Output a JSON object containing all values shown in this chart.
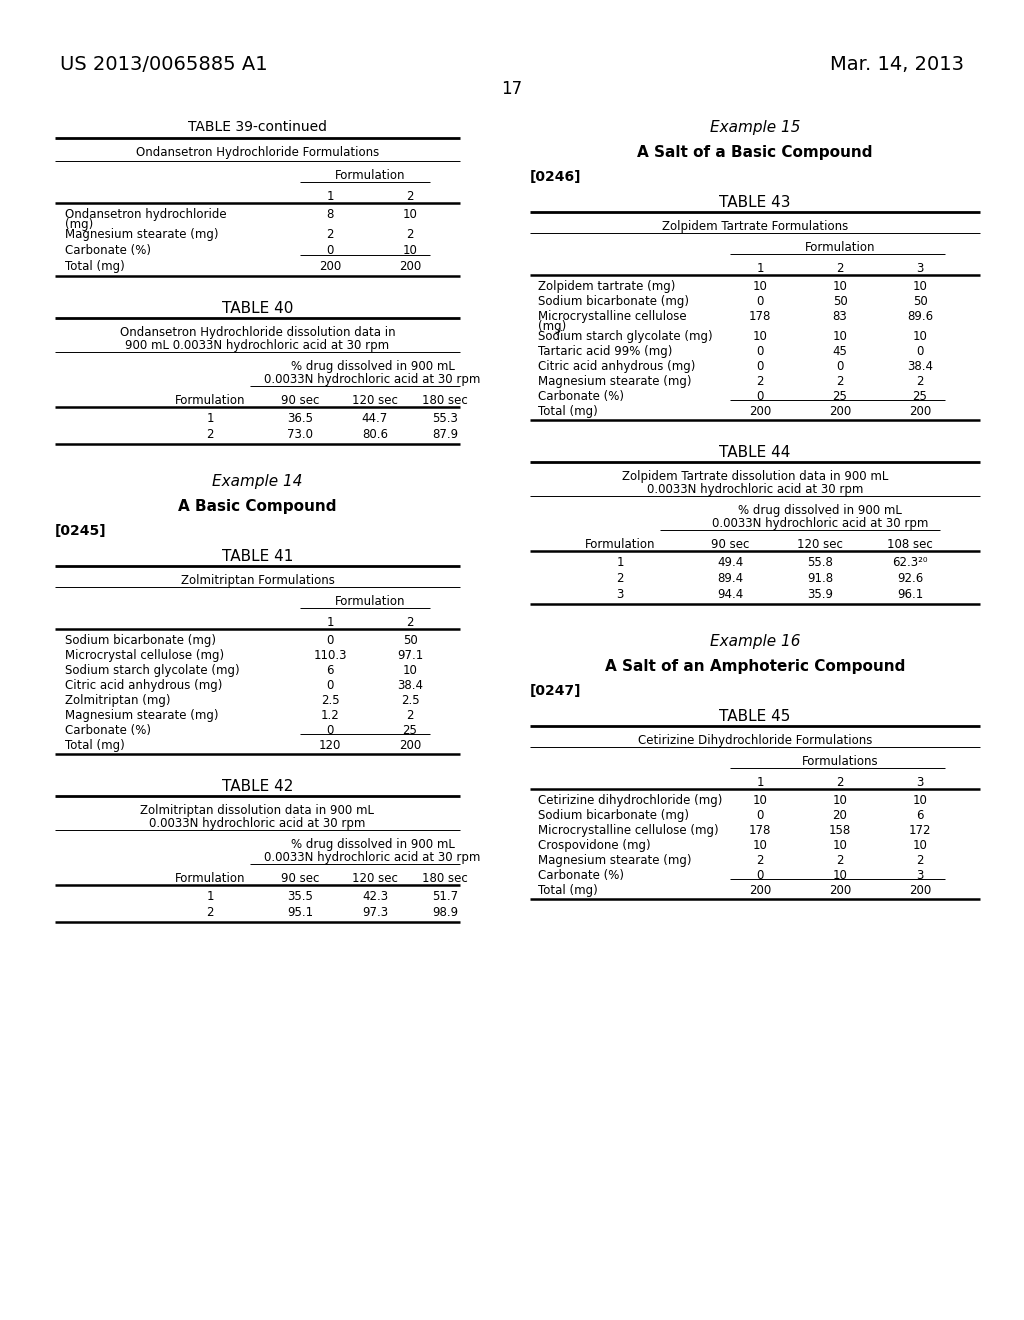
{
  "page_number": "17",
  "header_left": "US 2013/0065885 A1",
  "header_right": "Mar. 14, 2013",
  "background_color": "#ffffff",
  "text_color": "#000000",
  "table39_title": "TABLE 39-continued",
  "table39_subtitle": "Ondansetron Hydrochloride Formulations",
  "table39_formulation_header": "Formulation",
  "table39_col_headers": [
    "1",
    "2"
  ],
  "table39_rows": [
    [
      "Ondansetron hydrochloride\n(mg)",
      "8",
      "10"
    ],
    [
      "Magnesium stearate (mg)",
      "2",
      "2"
    ],
    [
      "Carbonate (%)",
      "0",
      "10"
    ],
    [
      "Total (mg)",
      "200",
      "200"
    ]
  ],
  "table40_title": "TABLE 40",
  "table40_subtitle1": "Ondansetron Hydrochloride dissolution data in",
  "table40_subtitle2": "900 mL 0.0033N hydrochloric acid at 30 rpm",
  "table40_subheader1": "% drug dissolved in 900 mL",
  "table40_subheader2": "0.0033N hydrochloric acid at 30 rpm",
  "table40_col_headers": [
    "Formulation",
    "90 sec",
    "120 sec",
    "180 sec"
  ],
  "table40_rows": [
    [
      "1",
      "36.5",
      "44.7",
      "55.3"
    ],
    [
      "2",
      "73.0",
      "80.6",
      "87.9"
    ]
  ],
  "example14_title": "Example 14",
  "example14_subtitle": "A Basic Compound",
  "example14_paragraph": "[0245]",
  "table41_title": "TABLE 41",
  "table41_subtitle": "Zolmitriptan Formulations",
  "table41_formulation_header": "Formulation",
  "table41_col_headers": [
    "1",
    "2"
  ],
  "table41_rows": [
    [
      "Sodium bicarbonate (mg)",
      "0",
      "50"
    ],
    [
      "Microcrystal cellulose (mg)",
      "110.3",
      "97.1"
    ],
    [
      "Sodium starch glycolate (mg)",
      "6",
      "10"
    ],
    [
      "Citric acid anhydrous (mg)",
      "0",
      "38.4"
    ],
    [
      "Zolmitriptan (mg)",
      "2.5",
      "2.5"
    ],
    [
      "Magnesium stearate (mg)",
      "1.2",
      "2"
    ],
    [
      "Carbonate (%)",
      "0",
      "25"
    ],
    [
      "Total (mg)",
      "120",
      "200"
    ]
  ],
  "table42_title": "TABLE 42",
  "table42_subtitle1": "Zolmitriptan dissolution data in 900 mL",
  "table42_subtitle2": "0.0033N hydrochloric acid at 30 rpm",
  "table42_subheader1": "% drug dissolved in 900 mL",
  "table42_subheader2": "0.0033N hydrochloric acid at 30 rpm",
  "table42_col_headers": [
    "Formulation",
    "90 sec",
    "120 sec",
    "180 sec"
  ],
  "table42_rows": [
    [
      "1",
      "35.5",
      "42.3",
      "51.7"
    ],
    [
      "2",
      "95.1",
      "97.3",
      "98.9"
    ]
  ],
  "example15_title": "Example 15",
  "example15_subtitle": "A Salt of a Basic Compound",
  "example15_paragraph": "[0246]",
  "table43_title": "TABLE 43",
  "table43_subtitle": "Zolpidem Tartrate Formulations",
  "table43_formulation_header": "Formulation",
  "table43_col_headers": [
    "1",
    "2",
    "3"
  ],
  "table43_rows": [
    [
      "Zolpidem tartrate (mg)",
      "10",
      "10",
      "10"
    ],
    [
      "Sodium bicarbonate (mg)",
      "0",
      "50",
      "50"
    ],
    [
      "Microcrystalline cellulose\n(mg)",
      "178",
      "83",
      "89.6"
    ],
    [
      "Sodium starch glycolate (mg)",
      "10",
      "10",
      "10"
    ],
    [
      "Tartaric acid 99% (mg)",
      "0",
      "45",
      "0"
    ],
    [
      "Citric acid anhydrous (mg)",
      "0",
      "0",
      "38.4"
    ],
    [
      "Magnesium stearate (mg)",
      "2",
      "2",
      "2"
    ],
    [
      "Carbonate (%)",
      "0",
      "25",
      "25"
    ],
    [
      "Total (mg)",
      "200",
      "200",
      "200"
    ]
  ],
  "table44_title": "TABLE 44",
  "table44_subtitle1": "Zolpidem Tartrate dissolution data in 900 mL",
  "table44_subtitle2": "0.0033N hydrochloric acid at 30 rpm",
  "table44_subheader1": "% drug dissolved in 900 mL",
  "table44_subheader2": "0.0033N hydrochloric acid at 30 rpm",
  "table44_col_headers": [
    "Formulation",
    "90 sec",
    "120 sec",
    "108 sec"
  ],
  "table44_rows": [
    [
      "1",
      "49.4",
      "55.8",
      "62.3²⁰"
    ],
    [
      "2",
      "89.4",
      "91.8",
      "92.6"
    ],
    [
      "3",
      "94.4",
      "35.9",
      "96.1"
    ]
  ],
  "example16_title": "Example 16",
  "example16_subtitle": "A Salt of an Amphoteric Compound",
  "example16_paragraph": "[0247]",
  "table45_title": "TABLE 45",
  "table45_subtitle": "Cetirizine Dihydrochloride Formulations",
  "table45_formulation_header": "Formulations",
  "table45_col_headers": [
    "1",
    "2",
    "3"
  ],
  "table45_rows": [
    [
      "Cetirizine dihydrochloride (mg)",
      "10",
      "10",
      "10"
    ],
    [
      "Sodium bicarbonate (mg)",
      "0",
      "20",
      "6"
    ],
    [
      "Microcrystalline cellulose (mg)",
      "178",
      "158",
      "172"
    ],
    [
      "Crospovidone (mg)",
      "10",
      "10",
      "10"
    ],
    [
      "Magnesium stearate (mg)",
      "2",
      "2",
      "2"
    ],
    [
      "Carbonate (%)",
      "0",
      "10",
      "3"
    ],
    [
      "Total (mg)",
      "200",
      "200",
      "200"
    ]
  ]
}
